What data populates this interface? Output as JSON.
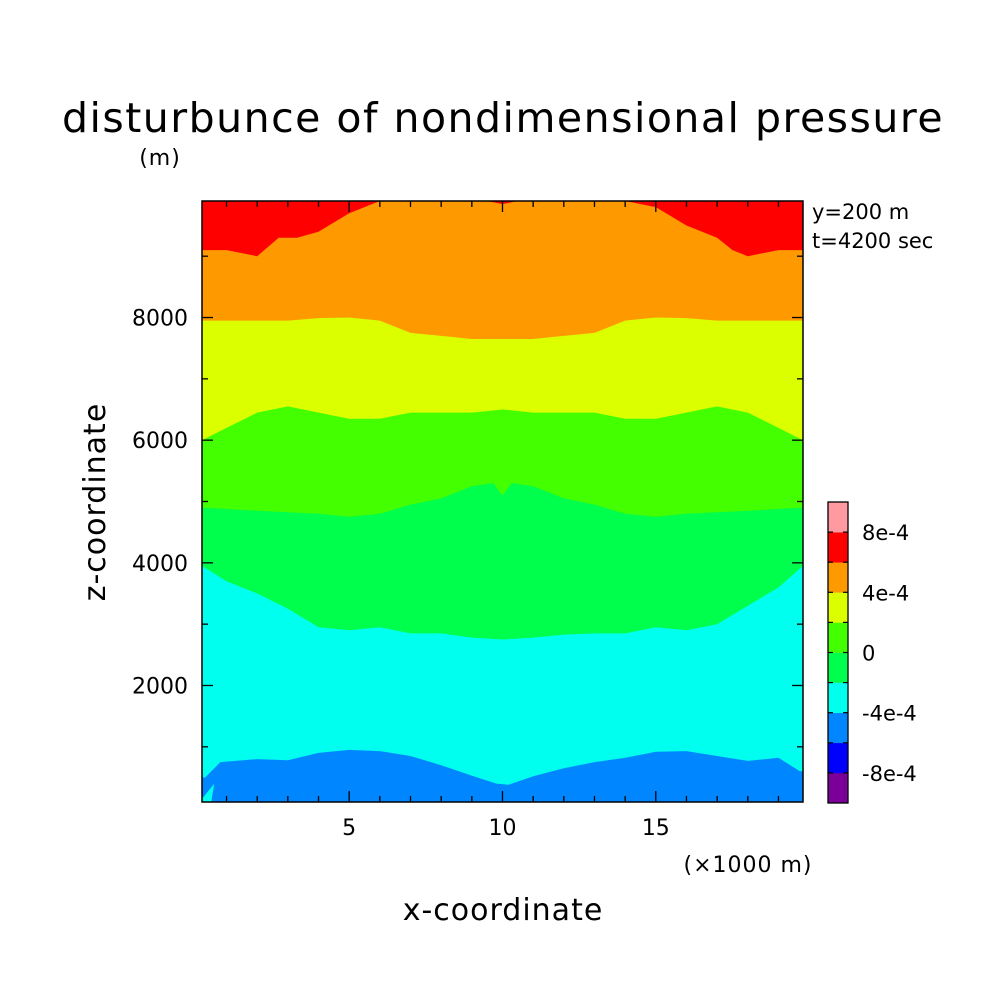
{
  "chart_data": {
    "type": "heatmap",
    "title": "disturbunce of nondimensional pressure",
    "ylabel": "z-coordinate",
    "yunit": "(m)",
    "xlabel": "x-coordinate",
    "xunit": "(×1000 m)",
    "info": [
      "y=200 m",
      "t=4200 sec"
    ],
    "xlim": [
      0.2,
      19.8
    ],
    "ylim": [
      100,
      9900
    ],
    "xticks": [
      5,
      10,
      15
    ],
    "yticks": [
      2000,
      4000,
      6000,
      8000
    ],
    "colorbar": {
      "levels": [
        -0.001,
        -0.0008,
        -0.0006,
        -0.0004,
        -0.0002,
        0,
        0.0002,
        0.0004,
        0.0006,
        0.0008,
        0.001
      ],
      "colors": [
        "#7b0099",
        "#0000ff",
        "#0087ff",
        "#00ffee",
        "#00ff4c",
        "#44ff00",
        "#dcff00",
        "#ff9900",
        "#ff0000",
        "#ff9aa0"
      ],
      "labels": [
        {
          "value": -0.0008,
          "text": "-8e-4"
        },
        {
          "value": -0.0004,
          "text": "-4e-4"
        },
        {
          "value": 0,
          "text": "0"
        },
        {
          "value": 0.0004,
          "text": "4e-4"
        },
        {
          "value": 0.0008,
          "text": "8e-4"
        }
      ]
    },
    "contour_boundaries": [
      {
        "lower": "#0087ff",
        "upper": "#00ffee",
        "level": -0.0006,
        "points": [
          [
            0.3,
            500
          ],
          [
            0.8,
            750
          ],
          [
            2,
            800
          ],
          [
            3,
            780
          ],
          [
            4,
            900
          ],
          [
            5,
            950
          ],
          [
            6,
            930
          ],
          [
            7,
            850
          ],
          [
            8,
            700
          ],
          [
            9,
            530
          ],
          [
            9.8,
            400
          ],
          [
            10.2,
            380
          ],
          [
            11,
            520
          ],
          [
            12,
            650
          ],
          [
            13,
            750
          ],
          [
            14,
            820
          ],
          [
            15,
            920
          ],
          [
            16,
            930
          ],
          [
            17,
            850
          ],
          [
            18,
            770
          ],
          [
            19,
            820
          ],
          [
            19.7,
            600
          ]
        ]
      },
      {
        "lower": "#00ffee",
        "upper": "#00ff4c",
        "level": -0.0002,
        "points": [
          [
            0.2,
            3950
          ],
          [
            1,
            3700
          ],
          [
            2,
            3500
          ],
          [
            3,
            3250
          ],
          [
            4,
            2950
          ],
          [
            5,
            2900
          ],
          [
            6,
            2950
          ],
          [
            7,
            2850
          ],
          [
            8,
            2850
          ],
          [
            9,
            2780
          ],
          [
            10,
            2750
          ],
          [
            11,
            2780
          ],
          [
            12,
            2830
          ],
          [
            13,
            2850
          ],
          [
            14,
            2850
          ],
          [
            15,
            2950
          ],
          [
            16,
            2900
          ],
          [
            17,
            3000
          ],
          [
            18,
            3300
          ],
          [
            19,
            3600
          ],
          [
            19.8,
            3950
          ]
        ]
      },
      {
        "lower": "#00ff4c",
        "upper": "#44ff00",
        "level": 0,
        "points": [
          [
            0.2,
            4900
          ],
          [
            2,
            4850
          ],
          [
            4,
            4800
          ],
          [
            5,
            4750
          ],
          [
            6,
            4800
          ],
          [
            7,
            4950
          ],
          [
            8,
            5050
          ],
          [
            9,
            5250
          ],
          [
            9.7,
            5300
          ],
          [
            10,
            5100
          ],
          [
            10.3,
            5300
          ],
          [
            11,
            5250
          ],
          [
            12,
            5050
          ],
          [
            13,
            4950
          ],
          [
            14,
            4800
          ],
          [
            15,
            4750
          ],
          [
            16,
            4800
          ],
          [
            18,
            4850
          ],
          [
            19.8,
            4900
          ]
        ]
      },
      {
        "lower": "#44ff00",
        "upper": "#dcff00",
        "level": 0.0002,
        "points": [
          [
            0.2,
            6000
          ],
          [
            1,
            6200
          ],
          [
            2,
            6450
          ],
          [
            3,
            6550
          ],
          [
            4,
            6450
          ],
          [
            5,
            6350
          ],
          [
            6,
            6350
          ],
          [
            7,
            6450
          ],
          [
            8,
            6450
          ],
          [
            9,
            6450
          ],
          [
            10,
            6500
          ],
          [
            11,
            6450
          ],
          [
            12,
            6450
          ],
          [
            13,
            6450
          ],
          [
            14,
            6350
          ],
          [
            15,
            6350
          ],
          [
            16,
            6450
          ],
          [
            17,
            6550
          ],
          [
            18,
            6450
          ],
          [
            19,
            6200
          ],
          [
            19.8,
            6000
          ]
        ]
      },
      {
        "lower": "#dcff00",
        "upper": "#ff9900",
        "level": 0.0004,
        "points": [
          [
            0.2,
            7950
          ],
          [
            1,
            7950
          ],
          [
            2,
            7950
          ],
          [
            3,
            7950
          ],
          [
            4,
            7990
          ],
          [
            5,
            8000
          ],
          [
            6,
            7950
          ],
          [
            7,
            7750
          ],
          [
            8,
            7700
          ],
          [
            9,
            7650
          ],
          [
            10,
            7650
          ],
          [
            11,
            7650
          ],
          [
            12,
            7700
          ],
          [
            13,
            7750
          ],
          [
            14,
            7950
          ],
          [
            15,
            8000
          ],
          [
            16,
            7990
          ],
          [
            17,
            7950
          ],
          [
            18,
            7950
          ],
          [
            19.8,
            7950
          ]
        ]
      },
      {
        "lower": "#ff9900",
        "upper": "#ff0000",
        "level": 0.0006,
        "points": [
          [
            0.2,
            9100
          ],
          [
            1,
            9100
          ],
          [
            2,
            9000
          ],
          [
            2.7,
            9300
          ],
          [
            3.3,
            9300
          ],
          [
            4,
            9400
          ],
          [
            5,
            9700
          ],
          [
            6,
            9900
          ],
          [
            7,
            9900
          ],
          [
            8,
            9900
          ],
          [
            9,
            9900
          ],
          [
            10,
            9900
          ],
          [
            11,
            9900
          ],
          [
            12,
            9900
          ],
          [
            13,
            9900
          ],
          [
            14,
            9900
          ],
          [
            15,
            9800
          ],
          [
            16,
            9500
          ],
          [
            17,
            9300
          ],
          [
            17.5,
            9100
          ],
          [
            18,
            9000
          ],
          [
            19,
            9100
          ],
          [
            19.8,
            9100
          ]
        ]
      }
    ],
    "bottom_wedge": {
      "color": "#00ffee",
      "points": [
        [
          0.2,
          100
        ],
        [
          0.2,
          150
        ],
        [
          0.6,
          400
        ],
        [
          0.5,
          100
        ]
      ]
    },
    "top_patch": {
      "color": "#ff0000",
      "points": [
        [
          9.5,
          9900
        ],
        [
          10,
          9850
        ],
        [
          10.5,
          9900
        ]
      ]
    }
  }
}
